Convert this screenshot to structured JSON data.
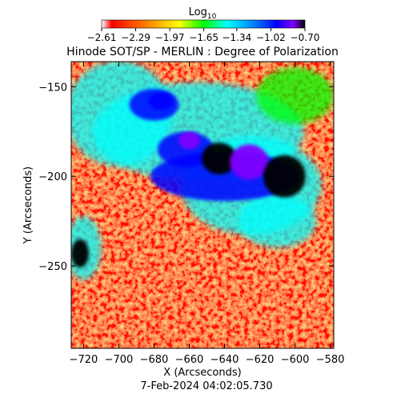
{
  "chart_data": {
    "type": "heatmap",
    "title": "Hinode SOT/SP - MERLIN : Degree of Polarization",
    "xlabel": "X (Arcseconds)",
    "ylabel": "Y (Arcseconds)",
    "xlim": [
      -727,
      -578
    ],
    "ylim": [
      -296,
      -136
    ],
    "x_ticks": [
      -720,
      -700,
      -680,
      -660,
      -640,
      -620,
      -600,
      -580
    ],
    "x_tick_labels": [
      "−720",
      "−700",
      "−680",
      "−660",
      "−640",
      "−620",
      "−600",
      "−580"
    ],
    "y_ticks": [
      -150,
      -200,
      -250
    ],
    "y_tick_labels": [
      "−150",
      "−200",
      "−250"
    ],
    "timestamp": "7-Feb-2024 04:02:05.730",
    "colorbar": {
      "label_base": "Log",
      "label_sub": "10",
      "range": [
        -2.61,
        -0.7
      ],
      "tick_values": [
        -2.61,
        -2.29,
        -1.97,
        -1.65,
        -1.34,
        -1.02,
        -0.7
      ],
      "tick_labels": [
        "−2.61",
        "−2.29",
        "−1.97",
        "−1.65",
        "−1.34",
        "−1.02",
        "−0.70"
      ],
      "colormap": [
        "#ffffff",
        "#ff0000",
        "#ff8000",
        "#ffff00",
        "#00ff00",
        "#00ffff",
        "#0080ff",
        "#0000ff",
        "#8000ff",
        "#000000"
      ]
    },
    "features": [
      {
        "kind": "high-polarization region",
        "x": -643,
        "y": -190,
        "level": -0.8
      },
      {
        "kind": "high-polarization region",
        "x": -626,
        "y": -192,
        "level": -0.85
      },
      {
        "kind": "high-polarization region",
        "x": -606,
        "y": -200,
        "level": -0.72
      },
      {
        "kind": "high-polarization region",
        "x": -660,
        "y": -180,
        "level": -1.0
      },
      {
        "kind": "high-polarization region",
        "x": -676,
        "y": -158,
        "level": -1.05
      },
      {
        "kind": "high-polarization region",
        "x": -722,
        "y": -243,
        "level": -0.8
      }
    ]
  }
}
